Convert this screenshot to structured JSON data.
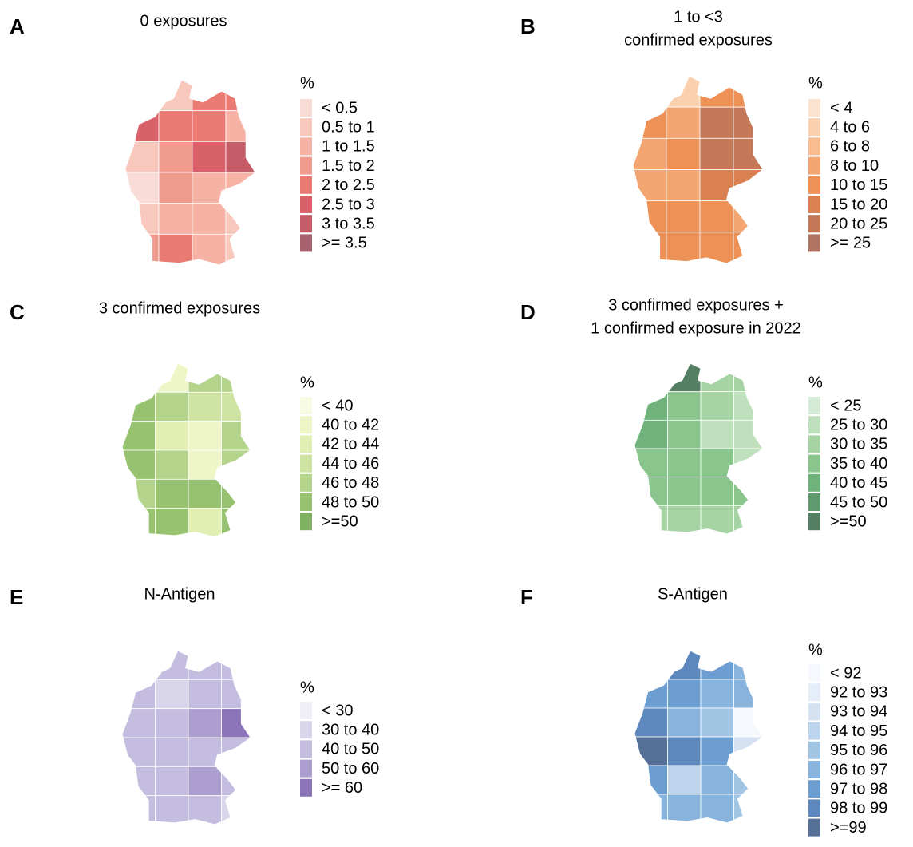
{
  "panels": [
    {
      "letter": "A",
      "title": [
        "0 exposures"
      ],
      "legend_title": "%",
      "legend": [
        "< 0.5",
        "0.5 to 1",
        "1 to 1.5",
        "1.5 to 2",
        "2 to 2.5",
        "2.5 to 3",
        "3 to 3.5",
        ">= 3.5"
      ],
      "colors": [
        "#f9dcd5",
        "#f8c8bd",
        "#f6b2a5",
        "#f19a8e",
        "#e97b72",
        "#d9626a",
        "#c45d68",
        "#a8616f"
      ],
      "region_classes": [
        [
          3,
          1,
          4,
          4
        ],
        [
          5,
          4,
          4,
          2
        ],
        [
          1,
          3,
          5,
          6
        ],
        [
          0,
          3,
          2,
          2
        ],
        [
          1,
          2,
          2,
          1
        ],
        [
          3,
          4,
          2,
          1
        ]
      ]
    },
    {
      "letter": "B",
      "title": [
        "1 to <3",
        "confirmed exposures"
      ],
      "legend_title": "%",
      "legend": [
        "< 4",
        "4 to 6",
        "6 to 8",
        "8 to 10",
        "10 to 15",
        "15 to 20",
        "20 to 25",
        ">= 25"
      ],
      "colors": [
        "#fbe3cf",
        "#fad0ae",
        "#f7bc8f",
        "#f4a672",
        "#ed9157",
        "#d98150",
        "#c47858",
        "#b07465"
      ],
      "region_classes": [
        [
          3,
          1,
          4,
          4
        ],
        [
          4,
          3,
          6,
          6
        ],
        [
          3,
          4,
          6,
          6
        ],
        [
          3,
          3,
          5,
          5
        ],
        [
          4,
          4,
          4,
          3
        ],
        [
          4,
          4,
          4,
          4
        ]
      ]
    },
    {
      "letter": "C",
      "title": [
        "3 confirmed exposures"
      ],
      "legend_title": "%",
      "legend": [
        "< 40",
        "40 to 42",
        "42 to 44",
        "44 to 46",
        "46 to 48",
        "48 to 50",
        ">=50"
      ],
      "colors": [
        "#f8fbe3",
        "#eef6c7",
        "#e2efb2",
        "#cfe4a2",
        "#b3d48a",
        "#97c26f",
        "#80b061"
      ],
      "region_classes": [
        [
          4,
          1,
          4,
          4
        ],
        [
          5,
          4,
          3,
          3
        ],
        [
          5,
          2,
          1,
          4
        ],
        [
          5,
          4,
          1,
          4
        ],
        [
          4,
          5,
          5,
          5
        ],
        [
          5,
          5,
          2,
          5
        ]
      ]
    },
    {
      "letter": "D",
      "title": [
        "3 confirmed exposures +",
        "1 confirmed exposure in 2022"
      ],
      "legend_title": "%",
      "legend": [
        "< 25",
        "25 to 30",
        "30 to 35",
        "35 to 40",
        "40 to 45",
        "45 to 50",
        ">=50"
      ],
      "colors": [
        "#d6ebd5",
        "#bee0bc",
        "#a5d3a4",
        "#8ac58d",
        "#6fb27c",
        "#5f9b6f",
        "#547f63"
      ],
      "region_classes": [
        [
          3,
          6,
          2,
          2
        ],
        [
          4,
          3,
          2,
          1
        ],
        [
          4,
          3,
          1,
          1
        ],
        [
          3,
          3,
          3,
          1
        ],
        [
          3,
          3,
          3,
          3
        ],
        [
          2,
          2,
          2,
          2
        ]
      ]
    },
    {
      "letter": "E",
      "title": [
        "N-Antigen"
      ],
      "legend_title": "%",
      "legend": [
        "< 30",
        "30 to 40",
        "40 to 50",
        "50 to 60",
        ">= 60"
      ],
      "colors": [
        "#f0eef6",
        "#d9d5ea",
        "#c4bde0",
        "#ac9fd0",
        "#8c74b8"
      ],
      "region_classes": [
        [
          1,
          2,
          2,
          2
        ],
        [
          2,
          1,
          2,
          2
        ],
        [
          2,
          2,
          3,
          4
        ],
        [
          2,
          2,
          2,
          2
        ],
        [
          2,
          2,
          3,
          2
        ],
        [
          2,
          2,
          2,
          1
        ]
      ]
    },
    {
      "letter": "F",
      "title": [
        "S-Antigen"
      ],
      "legend_title": "%",
      "legend": [
        "< 92",
        "92 to 93",
        "93 to 94",
        "94 to 95",
        "95 to 96",
        "96 to 97",
        "97 to 98",
        "98 to 99",
        ">=99"
      ],
      "colors": [
        "#f5f8fc",
        "#e5eef8",
        "#d4e2f2",
        "#bdd5ec",
        "#a3c5e4",
        "#88b3dc",
        "#6d9ed1",
        "#5d88bd",
        "#567098"
      ],
      "region_classes": [
        [
          6,
          7,
          6,
          5
        ],
        [
          6,
          6,
          5,
          5
        ],
        [
          7,
          5,
          4,
          0
        ],
        [
          8,
          7,
          6,
          2
        ],
        [
          6,
          3,
          5,
          4
        ],
        [
          5,
          5,
          5,
          4
        ]
      ]
    }
  ]
}
